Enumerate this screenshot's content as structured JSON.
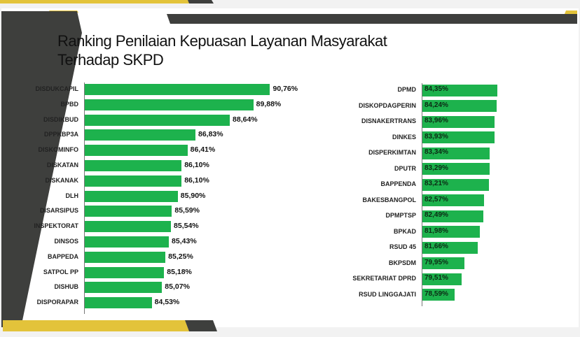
{
  "title_line1": "Ranking Penilaian Kepuasan Layanan Masyarakat",
  "title_line2": "Terhadap SKPD",
  "colors": {
    "bar": "#1db24d",
    "accent_yellow": "#e3c33a",
    "dark": "#3e3f3d"
  },
  "chart_data": [
    {
      "type": "bar",
      "orientation": "horizontal",
      "title": "Ranking Penilaian Kepuasan Layanan Masyarakat Terhadap SKPD (1)",
      "categories": [
        "DISDUKCAPIL",
        "BPBD",
        "DISDIKBUD",
        "DPPKBP3A",
        "DISKOMINFO",
        "DISKATAN",
        "DISKANAK",
        "DLH",
        "DISARSIPUS",
        "INSPEKTORAT",
        "DINSOS",
        "BAPPEDA",
        "SATPOL PP",
        "DISHUB",
        "DISPORAPAR"
      ],
      "values": [
        90.76,
        89.88,
        88.64,
        86.83,
        86.41,
        86.1,
        86.1,
        85.9,
        85.59,
        85.54,
        85.43,
        85.25,
        85.18,
        85.07,
        84.53
      ],
      "labels": [
        "90,76%",
        "89,88%",
        "88,64%",
        "86,83%",
        "86,41%",
        "86,10%",
        "86,10%",
        "85,90%",
        "85,59%",
        "85,54%",
        "85,43%",
        "85,25%",
        "85,18%",
        "85,07%",
        "84,53%"
      ],
      "xlim": [
        81,
        91
      ]
    },
    {
      "type": "bar",
      "orientation": "horizontal",
      "title": "Ranking Penilaian Kepuasan Layanan Masyarakat Terhadap SKPD (2)",
      "categories": [
        "DPMD",
        "DISKOPDAGPERIN",
        "DISNAKERTRANS",
        "DINKES",
        "DISPERKIMTAN",
        "DPUTR",
        "BAPPENDA",
        "BAKESBANGPOL",
        "DPMPTSP",
        "BPKAD",
        "RSUD 45",
        "BKPSDM",
        "SEKRETARIAT DPRD",
        "RSUD LINGGAJATI"
      ],
      "values": [
        84.35,
        84.24,
        83.96,
        83.93,
        83.34,
        83.29,
        83.21,
        82.57,
        82.49,
        81.98,
        81.66,
        79.95,
        79.51,
        78.59
      ],
      "labels": [
        "84,35%",
        "84,24%",
        "83,96%",
        "83,93%",
        "83,34%",
        "83,29%",
        "83,21%",
        "82,57%",
        "82,49%",
        "81,98%",
        "81,66%",
        "79,95%",
        "79,51%",
        "78,59%"
      ],
      "xlim": [
        74.25,
        85
      ]
    }
  ]
}
